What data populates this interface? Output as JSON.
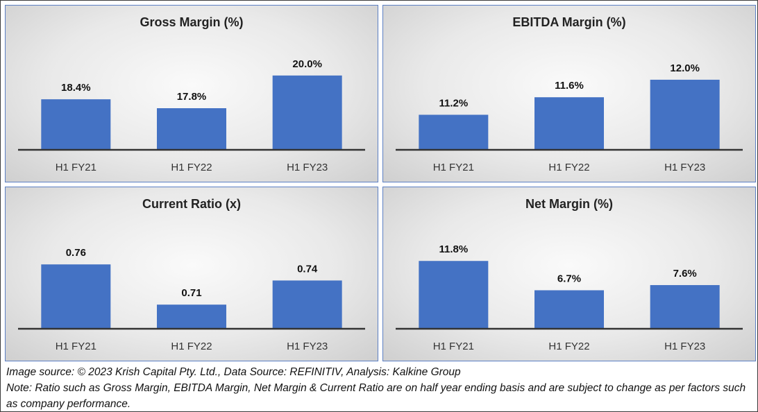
{
  "chart_data": [
    {
      "type": "bar",
      "title": "Gross Margin (%)",
      "categories": [
        "H1 FY21",
        "H1 FY22",
        "H1 FY23"
      ],
      "values": [
        18.4,
        17.8,
        20.0
      ],
      "data_labels": [
        "18.4%",
        "17.8%",
        "20.0%"
      ],
      "ylim": [
        15.0,
        20.6
      ],
      "bar_color": "#4472c4",
      "grid": false,
      "legend": "none"
    },
    {
      "type": "bar",
      "title": "EBITDA Margin (%)",
      "categories": [
        "H1 FY21",
        "H1 FY22",
        "H1 FY23"
      ],
      "values": [
        11.2,
        11.6,
        12.0
      ],
      "data_labels": [
        "11.2%",
        "11.6%",
        "12.0%"
      ],
      "ylim": [
        10.4,
        12.3
      ],
      "bar_color": "#4472c4",
      "grid": false,
      "legend": "none"
    },
    {
      "type": "bar",
      "title": "Current Ratio (x)",
      "categories": [
        "H1 FY21",
        "H1 FY22",
        "H1 FY23"
      ],
      "values": [
        0.76,
        0.71,
        0.74
      ],
      "data_labels": [
        "0.76",
        "0.71",
        "0.74"
      ],
      "ylim": [
        0.68,
        0.78
      ],
      "bar_color": "#4472c4",
      "grid": false,
      "legend": "none"
    },
    {
      "type": "bar",
      "title": "Net Margin (%)",
      "categories": [
        "H1 FY21",
        "H1 FY22",
        "H1 FY23"
      ],
      "values": [
        11.8,
        6.7,
        7.6
      ],
      "data_labels": [
        "11.8%",
        "6.7%",
        "7.6%"
      ],
      "ylim": [
        0,
        14.0
      ],
      "bar_color": "#4472c4",
      "grid": false,
      "legend": "none"
    }
  ],
  "footer": {
    "source": "Image source: © 2023 Krish Capital Pty. Ltd., Data Source: REFINITIV, Analysis: Kalkine Group",
    "note": "Note: Ratio such as Gross Margin, EBITDA Margin, Net Margin & Current Ratio are on half year ending basis and are subject to change as per factors such as company performance."
  },
  "colors": {
    "bar": "#4472c4",
    "panel_border": "#5b7fc4",
    "axis": "#333333"
  }
}
